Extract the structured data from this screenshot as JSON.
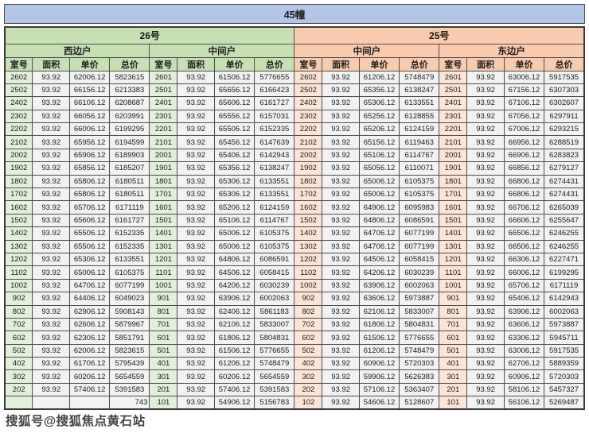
{
  "title": "45幢",
  "watermark": "搜狐号@搜狐焦点黄石站",
  "buildings": [
    {
      "label": "26号",
      "theme": "green"
    },
    {
      "label": "25号",
      "theme": "orange"
    }
  ],
  "columns": [
    "室号",
    "面积",
    "单价",
    "总价"
  ],
  "covered_row": {
    "group_index": 0,
    "row_index": 25,
    "visible_total_suffix": "743"
  },
  "colors": {
    "title_bg": "#b4c6e7",
    "green_header": "#c6e0b4",
    "green_room": "#e2efda",
    "orange_header": "#f8cbad",
    "orange_room": "#fce4d6",
    "cell_bg": "#f2f2f2",
    "border": "#4d4d4d"
  },
  "groups": [
    {
      "building": "26号",
      "section": "西边户",
      "theme": "green",
      "rows": [
        [
          "2602",
          "93.92",
          "62006.12",
          "5823615"
        ],
        [
          "2502",
          "93.92",
          "66156.12",
          "6213383"
        ],
        [
          "2402",
          "93.92",
          "66106.12",
          "6208687"
        ],
        [
          "2302",
          "93.92",
          "66056.12",
          "6203991"
        ],
        [
          "2202",
          "93.92",
          "66006.12",
          "6199295"
        ],
        [
          "2102",
          "93.92",
          "65956.12",
          "6194599"
        ],
        [
          "2002",
          "93.92",
          "65906.12",
          "6189903"
        ],
        [
          "1902",
          "93.92",
          "65856.12",
          "6185207"
        ],
        [
          "1802",
          "93.92",
          "65806.12",
          "6180511"
        ],
        [
          "1702",
          "93.92",
          "65806.12",
          "6180511"
        ],
        [
          "1602",
          "93.92",
          "65706.12",
          "6171119"
        ],
        [
          "1502",
          "93.92",
          "65606.12",
          "6161727"
        ],
        [
          "1402",
          "93.92",
          "65506.12",
          "6152335"
        ],
        [
          "1302",
          "93.92",
          "65506.12",
          "6152335"
        ],
        [
          "1202",
          "93.92",
          "65306.12",
          "6133551"
        ],
        [
          "1102",
          "93.92",
          "65006.12",
          "6105375"
        ],
        [
          "1002",
          "93.92",
          "64706.12",
          "6077199"
        ],
        [
          "902",
          "93.92",
          "64406.12",
          "6049023"
        ],
        [
          "802",
          "93.92",
          "62906.12",
          "5908143"
        ],
        [
          "702",
          "93.92",
          "62606.12",
          "5879967"
        ],
        [
          "602",
          "93.92",
          "62306.12",
          "5851791"
        ],
        [
          "502",
          "93.92",
          "62006.12",
          "5823615"
        ],
        [
          "402",
          "93.92",
          "61706.12",
          "5795439"
        ],
        [
          "302",
          "93.92",
          "60206.12",
          "5654559"
        ],
        [
          "202",
          "93.92",
          "57406.12",
          "5391583"
        ],
        [
          "",
          "",
          "",
          "743"
        ]
      ]
    },
    {
      "building": "26号",
      "section": "中间户",
      "theme": "green",
      "rows": [
        [
          "2601",
          "93.92",
          "61506.12",
          "5776655"
        ],
        [
          "2501",
          "93.92",
          "65656.12",
          "6166423"
        ],
        [
          "2401",
          "93.92",
          "65606.12",
          "6161727"
        ],
        [
          "2301",
          "93.92",
          "65556.12",
          "6157031"
        ],
        [
          "2201",
          "93.92",
          "65506.12",
          "6152335"
        ],
        [
          "2101",
          "93.92",
          "65456.12",
          "6147639"
        ],
        [
          "2001",
          "93.92",
          "65406.12",
          "6142943"
        ],
        [
          "1901",
          "93.92",
          "65356.12",
          "6138247"
        ],
        [
          "1801",
          "93.92",
          "65306.12",
          "6133551"
        ],
        [
          "1701",
          "93.92",
          "65306.12",
          "6133551"
        ],
        [
          "1601",
          "93.92",
          "65206.12",
          "6124159"
        ],
        [
          "1501",
          "93.92",
          "65106.12",
          "6114767"
        ],
        [
          "1401",
          "93.92",
          "65006.12",
          "6105375"
        ],
        [
          "1301",
          "93.92",
          "65006.12",
          "6105375"
        ],
        [
          "1201",
          "93.92",
          "64806.12",
          "6086591"
        ],
        [
          "1101",
          "93.92",
          "64506.12",
          "6058415"
        ],
        [
          "1001",
          "93.92",
          "64206.12",
          "6030239"
        ],
        [
          "901",
          "93.92",
          "63906.12",
          "6002063"
        ],
        [
          "801",
          "93.92",
          "62406.12",
          "5861183"
        ],
        [
          "701",
          "93.92",
          "62106.12",
          "5833007"
        ],
        [
          "601",
          "93.92",
          "61806.12",
          "5804831"
        ],
        [
          "501",
          "93.92",
          "61506.12",
          "5776655"
        ],
        [
          "401",
          "93.92",
          "61206.12",
          "5748479"
        ],
        [
          "301",
          "93.92",
          "60206.12",
          "5654559"
        ],
        [
          "201",
          "93.92",
          "57406.12",
          "5391583"
        ],
        [
          "101",
          "93.92",
          "54906.12",
          "5156783"
        ]
      ]
    },
    {
      "building": "25号",
      "section": "中间户",
      "theme": "orange",
      "rows": [
        [
          "2602",
          "93.92",
          "61206.12",
          "5748479"
        ],
        [
          "2502",
          "93.92",
          "65356.12",
          "6138247"
        ],
        [
          "2402",
          "93.92",
          "65306.12",
          "6133551"
        ],
        [
          "2302",
          "93.92",
          "65256.12",
          "6128855"
        ],
        [
          "2202",
          "93.92",
          "65206.12",
          "6124159"
        ],
        [
          "2102",
          "93.92",
          "65156.12",
          "6119463"
        ],
        [
          "2002",
          "93.92",
          "65106.12",
          "6114767"
        ],
        [
          "1902",
          "93.92",
          "65056.12",
          "6110071"
        ],
        [
          "1802",
          "93.92",
          "65006.12",
          "6105375"
        ],
        [
          "1702",
          "93.92",
          "65006.12",
          "6105375"
        ],
        [
          "1602",
          "93.92",
          "64906.12",
          "6095983"
        ],
        [
          "1502",
          "93.92",
          "64806.12",
          "6086591"
        ],
        [
          "1402",
          "93.92",
          "64706.12",
          "6077199"
        ],
        [
          "1302",
          "93.92",
          "64706.12",
          "6077199"
        ],
        [
          "1202",
          "93.92",
          "64506.12",
          "6058415"
        ],
        [
          "1102",
          "93.92",
          "64206.12",
          "6030239"
        ],
        [
          "1002",
          "93.92",
          "63906.12",
          "6002063"
        ],
        [
          "902",
          "93.92",
          "63606.12",
          "5973887"
        ],
        [
          "802",
          "93.92",
          "62106.12",
          "5833007"
        ],
        [
          "702",
          "93.92",
          "61806.12",
          "5804831"
        ],
        [
          "602",
          "93.92",
          "61506.12",
          "5776655"
        ],
        [
          "502",
          "93.92",
          "61206.12",
          "5748479"
        ],
        [
          "402",
          "93.92",
          "60906.12",
          "5720303"
        ],
        [
          "302",
          "93.92",
          "59906.12",
          "5626383"
        ],
        [
          "202",
          "93.92",
          "57106.12",
          "5363407"
        ],
        [
          "102",
          "93.92",
          "54606.12",
          "5128607"
        ]
      ]
    },
    {
      "building": "25号",
      "section": "东边户",
      "theme": "orange",
      "rows": [
        [
          "2601",
          "93.92",
          "63006.12",
          "5917535"
        ],
        [
          "2501",
          "93.92",
          "67156.12",
          "6307303"
        ],
        [
          "2401",
          "93.92",
          "67106.12",
          "6302607"
        ],
        [
          "2301",
          "93.92",
          "67056.12",
          "6297911"
        ],
        [
          "2201",
          "93.92",
          "67006.12",
          "6293215"
        ],
        [
          "2101",
          "93.92",
          "66956.12",
          "6288519"
        ],
        [
          "2001",
          "93.92",
          "66906.12",
          "6283823"
        ],
        [
          "1901",
          "93.92",
          "66856.12",
          "6279127"
        ],
        [
          "1801",
          "93.92",
          "66806.12",
          "6274431"
        ],
        [
          "1701",
          "93.92",
          "66806.12",
          "6274431"
        ],
        [
          "1601",
          "93.92",
          "66706.12",
          "6265039"
        ],
        [
          "1501",
          "93.92",
          "66606.12",
          "6255647"
        ],
        [
          "1401",
          "93.92",
          "66506.12",
          "6246255"
        ],
        [
          "1301",
          "93.92",
          "66506.12",
          "6246255"
        ],
        [
          "1201",
          "93.92",
          "66306.12",
          "6227471"
        ],
        [
          "1101",
          "93.92",
          "66006.12",
          "6199295"
        ],
        [
          "1001",
          "93.92",
          "65706.12",
          "6171119"
        ],
        [
          "901",
          "93.92",
          "65406.12",
          "6142943"
        ],
        [
          "801",
          "93.92",
          "63906.12",
          "6002063"
        ],
        [
          "701",
          "93.92",
          "63606.12",
          "5973887"
        ],
        [
          "601",
          "93.92",
          "63306.12",
          "5945711"
        ],
        [
          "501",
          "93.92",
          "63006.12",
          "5917535"
        ],
        [
          "401",
          "93.92",
          "62706.12",
          "5889359"
        ],
        [
          "301",
          "93.92",
          "60906.12",
          "5720303"
        ],
        [
          "201",
          "93.92",
          "58106.12",
          "5457327"
        ],
        [
          "101",
          "93.92",
          "56106.12",
          "5269487"
        ]
      ]
    }
  ]
}
